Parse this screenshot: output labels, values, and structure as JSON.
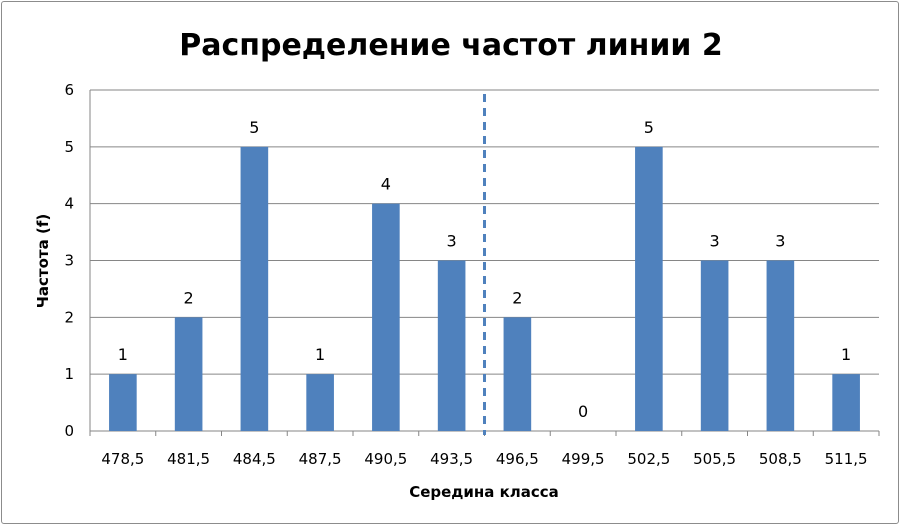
{
  "chart_data": {
    "type": "bar",
    "title": "Распределение частот линии 2",
    "xlabel": "Середина класса",
    "ylabel": "Частота (f)",
    "categories": [
      "478,5",
      "481,5",
      "484,5",
      "487,5",
      "490,5",
      "493,5",
      "496,5",
      "499,5",
      "502,5",
      "505,5",
      "508,5",
      "511,5"
    ],
    "values": [
      1,
      2,
      5,
      1,
      4,
      3,
      2,
      0,
      5,
      3,
      3,
      1
    ],
    "data_labels": [
      "1",
      "2",
      "5",
      "1",
      "4",
      "3",
      "2",
      "0",
      "5",
      "3",
      "3",
      "1"
    ],
    "ylim": [
      0,
      6
    ],
    "yticks": [
      "0",
      "1",
      "2",
      "3",
      "4",
      "5",
      "6"
    ],
    "grid": true,
    "legend": "none",
    "bar_color": "#4f81bd",
    "grid_color": "#868686",
    "divider_color": "#4f81bd",
    "divider_between": [
      "493,5",
      "496,5"
    ]
  }
}
